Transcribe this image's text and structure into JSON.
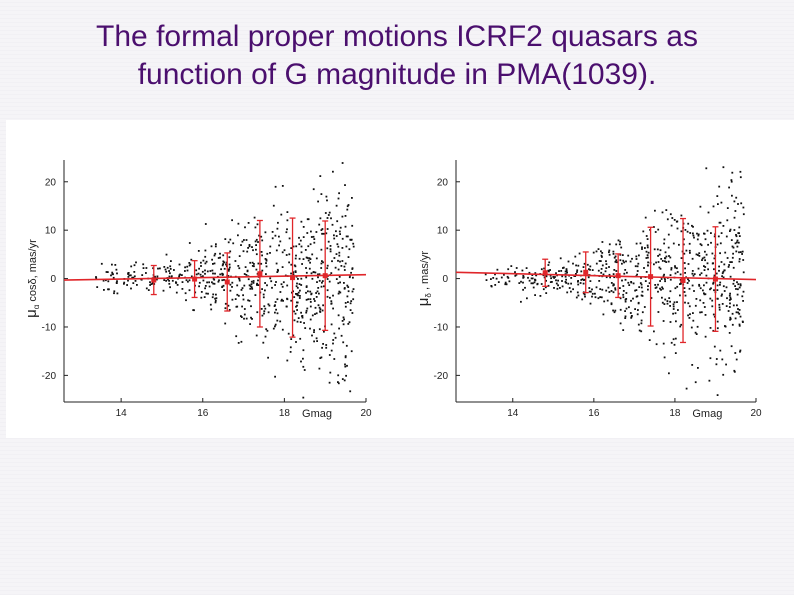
{
  "slide": {
    "title_line1": "The formal proper motions ICRF2 quasars as",
    "title_line2": "function of G magnitude in PMA(1039)."
  },
  "colors": {
    "title": "#4b0f6e",
    "points": "#111111",
    "fit": "#e0262a"
  },
  "chart_data": [
    {
      "type": "scatter",
      "title": "",
      "xlabel": "Gmag",
      "ylabel_main": "μ",
      "ylabel_sub": "α",
      "ylabel_rest": "cosδ, mas/yr",
      "xlim": [
        12.6,
        20
      ],
      "ylim": [
        -25.5,
        24.5
      ],
      "x_ticks": [
        14,
        16,
        18,
        20
      ],
      "y_ticks": [
        20,
        10,
        0,
        -10,
        -20
      ],
      "grid": false,
      "fit_line": {
        "x": [
          12.6,
          20
        ],
        "y": [
          -0.3,
          0.8
        ]
      },
      "binned_means": [
        {
          "x": 14.8,
          "y": -0.3,
          "err": 3.0
        },
        {
          "x": 15.8,
          "y": -0.1,
          "err": 3.8
        },
        {
          "x": 16.6,
          "y": -0.7,
          "err": 6.0
        },
        {
          "x": 17.4,
          "y": 1.0,
          "err": 11.0
        },
        {
          "x": 18.2,
          "y": 0.2,
          "err": 12.3
        },
        {
          "x": 19.0,
          "y": 0.6,
          "err": 11.3
        }
      ]
    },
    {
      "type": "scatter",
      "title": "",
      "xlabel": "Gmag",
      "ylabel_main": "μ",
      "ylabel_sub": "δ",
      "ylabel_rest": ", mas/yr",
      "xlim": [
        12.6,
        20
      ],
      "ylim": [
        -25.5,
        24.5
      ],
      "x_ticks": [
        14,
        16,
        18,
        20
      ],
      "y_ticks": [
        20,
        10,
        0,
        -10,
        -20
      ],
      "grid": false,
      "fit_line": {
        "x": [
          12.6,
          20
        ],
        "y": [
          1.3,
          -0.2
        ]
      },
      "binned_means": [
        {
          "x": 14.8,
          "y": 1.2,
          "err": 2.8
        },
        {
          "x": 15.8,
          "y": 1.3,
          "err": 4.2
        },
        {
          "x": 16.6,
          "y": 0.6,
          "err": 4.5
        },
        {
          "x": 17.4,
          "y": 0.4,
          "err": 10.2
        },
        {
          "x": 18.2,
          "y": -0.4,
          "err": 12.8
        },
        {
          "x": 19.0,
          "y": -0.1,
          "err": 10.8
        }
      ]
    }
  ]
}
